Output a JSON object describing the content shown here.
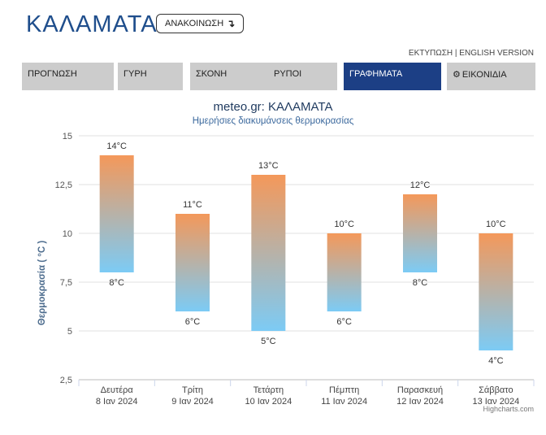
{
  "header": {
    "title": "ΚΑΛΑΜΑΤΑ",
    "announce_label": "ΑΝΑΚΟΙΝΩΣΗ",
    "announce_icon": "arrow-down-icon",
    "print_label": "ΕΚΤΥΠΩΣΗ",
    "separator": "|",
    "english_label": "ENGLISH VERSION"
  },
  "tabs": [
    {
      "label": "ΠΡΟΓΝΩΣΗ",
      "active": false
    },
    {
      "label": "ΓΥΡΗ",
      "active": false
    },
    {
      "label": "ΣΚΟΝΗ",
      "active": false
    },
    {
      "label": "ΡΥΠΟΙ",
      "active": false
    },
    {
      "label": "ΓΡΑΦΗΜΑΤΑ",
      "active": true
    },
    {
      "label": "ΕΙΚΟΝΙΔΙΑ",
      "active": false,
      "icon": "gear-icon"
    }
  ],
  "chart_data": {
    "type": "bar",
    "subtype": "columnrange",
    "title": "meteo.gr: ΚΑΛΑΜΑΤΑ",
    "subtitle": "Ημερήσιες διακυμάνσεις θερμοκρασίας",
    "ylabel": "Θερμοκρασία ( °C )",
    "ylim": [
      2.5,
      15
    ],
    "yticks": [
      "2,5",
      "5",
      "7,5",
      "10",
      "12,5",
      "15"
    ],
    "ytick_values": [
      2.5,
      5,
      7.5,
      10,
      12.5,
      15
    ],
    "grid": true,
    "categories": [
      {
        "day": "Δευτέρα",
        "date": "8 Ιαν 2024"
      },
      {
        "day": "Τρίτη",
        "date": "9 Ιαν 2024"
      },
      {
        "day": "Τετάρτη",
        "date": "10 Ιαν 2024"
      },
      {
        "day": "Πέμπτη",
        "date": "11 Ιαν 2024"
      },
      {
        "day": "Παρασκευή",
        "date": "12 Ιαν 2024"
      },
      {
        "day": "Σάββατο",
        "date": "13 Ιαν 2024"
      }
    ],
    "min": [
      8,
      6,
      5,
      6,
      8,
      4
    ],
    "max": [
      14,
      11,
      13,
      10,
      12,
      10
    ],
    "min_labels": [
      "8°C",
      "6°C",
      "5°C",
      "6°C",
      "8°C",
      "4°C"
    ],
    "max_labels": [
      "14°C",
      "11°C",
      "13°C",
      "10°C",
      "12°C",
      "10°C"
    ],
    "colors": {
      "warm": "#f4985a",
      "cool": "#7ccbf5",
      "title": "#1f3a5f",
      "subtitle": "#3d6a9e",
      "axis_label": "#4f6e8f"
    },
    "credit": "Highcharts.com"
  }
}
